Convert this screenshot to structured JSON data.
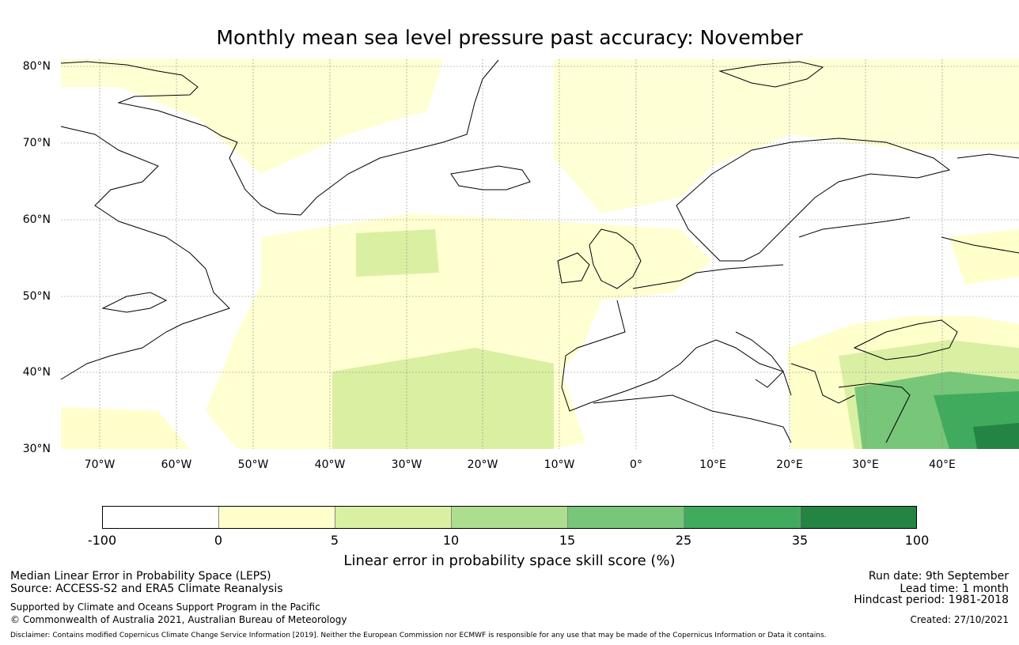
{
  "title": "Monthly mean sea level pressure past accuracy: November",
  "map": {
    "latitude_labels": [
      "80°N",
      "70°N",
      "60°N",
      "50°N",
      "40°N",
      "30°N"
    ],
    "longitude_labels": [
      "70°W",
      "60°W",
      "50°W",
      "40°W",
      "30°W",
      "20°W",
      "10°W",
      "0°",
      "10°E",
      "20°E",
      "30°E",
      "40°E"
    ],
    "extent": {
      "lon_min": -75,
      "lon_max": 50,
      "lat_min": 30,
      "lat_max": 81
    },
    "gridlines": true,
    "coastline_color": "#000000"
  },
  "colorbar": {
    "label": "Linear error in probability space skill score (%)",
    "ticks": [
      "-100",
      "0",
      "5",
      "10",
      "15",
      "25",
      "35",
      "100"
    ],
    "colors": [
      "#ffffff",
      "#ffffcc",
      "#d9f0a3",
      "#addd8e",
      "#78c679",
      "#41ab5d",
      "#238443"
    ]
  },
  "footer": {
    "left": {
      "line1": "Median Linear Error in Probability Space (LEPS)",
      "line2": "Source: ACCESS-S2 and ERA5 Climate Reanalysis",
      "line3": "Supported by Climate and Oceans Support Program in the Pacific",
      "line4": "© Commonwealth of Australia 2021, Australian Bureau of Meteorology"
    },
    "right": {
      "run_date": "Run date: 9th September",
      "lead_time": "Lead time: 1 month",
      "hindcast": "Hindcast period: 1981-2018",
      "created": "Created: 27/10/2021"
    },
    "disclaimer": "Disclaimer: Contains modified Copernicus Climate Change Service Information [2019]. Neither the European Commission nor ECMWF is responsible for any use that may be made of the Copernicus Information or Data it contains."
  }
}
